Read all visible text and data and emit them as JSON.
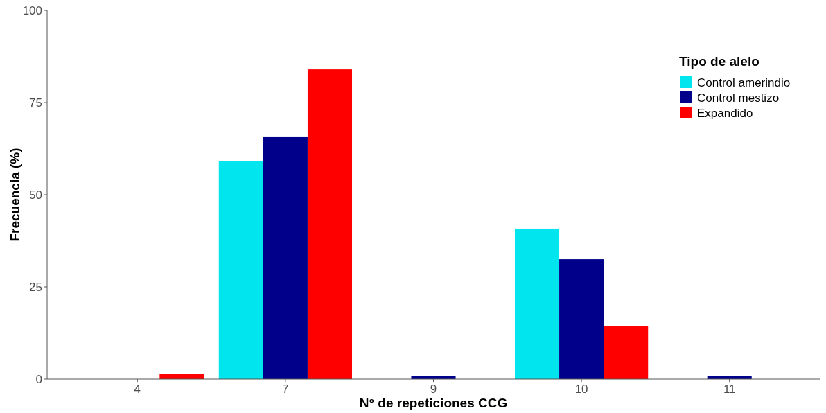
{
  "chart_data": {
    "type": "bar",
    "xlabel": "N° de repeticiones CCG",
    "ylabel": "Frecuencia (%)",
    "legend_title": "Tipo de alelo",
    "categories": [
      "4",
      "7",
      "9",
      "10",
      "11"
    ],
    "series": [
      {
        "name": "Control amerindio",
        "color": "#00e5ee",
        "values": [
          null,
          59.2,
          null,
          40.8,
          null
        ]
      },
      {
        "name": "Control mestizo",
        "color": "#00008b",
        "values": [
          null,
          65.8,
          0.8,
          32.5,
          0.8
        ]
      },
      {
        "name": "Expandido",
        "color": "#ff0000",
        "values": [
          1.5,
          84.0,
          null,
          14.3,
          null
        ]
      }
    ],
    "ylim": [
      0,
      100
    ],
    "yticks": [
      0,
      25,
      50,
      75,
      100
    ],
    "grid": false,
    "legend": "top right"
  }
}
